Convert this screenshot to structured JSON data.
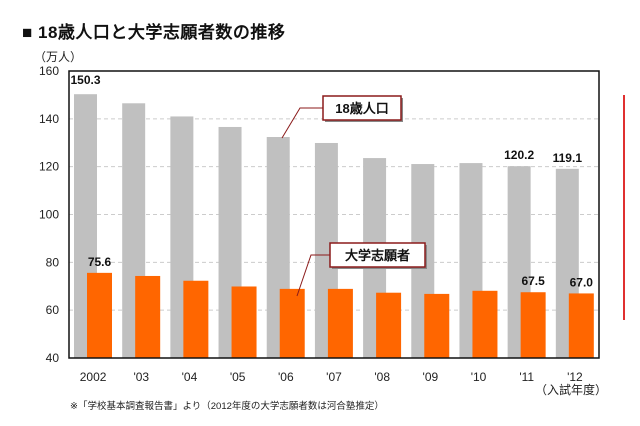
{
  "title": "■ 18歳人口と大学志願者数の推移",
  "unit_label": "（万人）",
  "x_unit_label": "（入試年度）",
  "footnote": "※「学校基本調査報告書」より（2012年度の大学志願者数は河合塾推定）",
  "colors": {
    "population": "#c0c0c0",
    "applicants": "#ff6600",
    "callout_border": "#8b1a1a",
    "edge_line": "#e03030"
  },
  "chart_data": {
    "type": "bar",
    "categories": [
      "2002",
      "'03",
      "'04",
      "'05",
      "'06",
      "'07",
      "'08",
      "'09",
      "'10",
      "'11",
      "'12"
    ],
    "series": [
      {
        "name": "18歳人口",
        "values": [
          150.3,
          146.5,
          141.0,
          136.6,
          132.4,
          129.9,
          123.6,
          121.1,
          121.5,
          120.2,
          119.1
        ]
      },
      {
        "name": "大学志願者",
        "values": [
          75.6,
          74.3,
          72.3,
          69.9,
          68.9,
          68.9,
          67.3,
          66.8,
          68.1,
          67.5,
          67.0
        ]
      }
    ],
    "data_labels": [
      {
        "series": 0,
        "index": 0,
        "text": "150.3"
      },
      {
        "series": 0,
        "index": 9,
        "text": "120.2"
      },
      {
        "series": 0,
        "index": 10,
        "text": "119.1"
      },
      {
        "series": 1,
        "index": 0,
        "text": "75.6"
      },
      {
        "series": 1,
        "index": 9,
        "text": "67.5"
      },
      {
        "series": 1,
        "index": 10,
        "text": "67.0"
      }
    ],
    "yticks": [
      "40",
      "60",
      "80",
      "100",
      "120",
      "140",
      "160"
    ],
    "ylim": [
      40,
      160
    ],
    "grid": "horizontal dashed",
    "legend": "callouts"
  }
}
